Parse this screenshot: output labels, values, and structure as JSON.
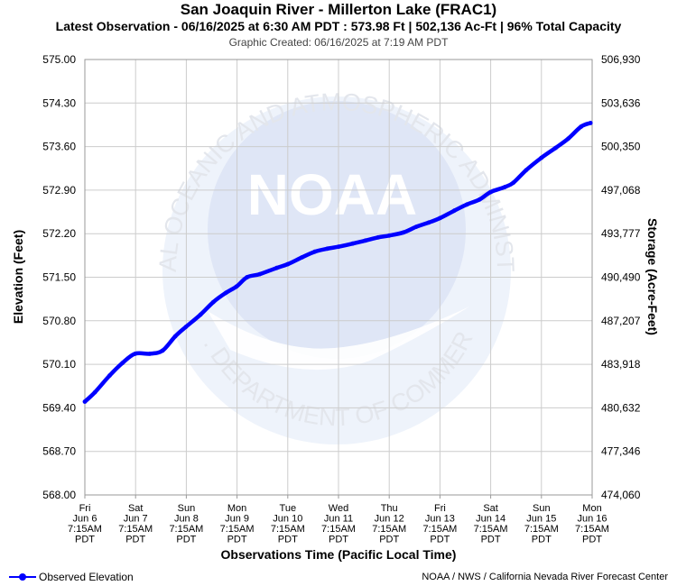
{
  "header": {
    "title": "San Joaquin River - Millerton Lake (FRAC1)",
    "subtitle": "Latest Observation - 06/16/2025 at 6:30 AM PDT : 573.98 Ft | 502,136 Ac-Ft | 96% Total Capacity",
    "created": "Graphic Created: 06/16/2025 at 7:19 AM PDT"
  },
  "watermark": {
    "logo_text": "NOAA",
    "ring_top": "NATIONAL OCEANIC AND ATMOSPHERIC ADMINISTRATION",
    "ring_bottom": "U.S. DEPARTMENT OF COMMERCE"
  },
  "legend": {
    "label": "Observed Elevation",
    "icon": "line-with-dot-icon"
  },
  "credit": "NOAA / NWS / California Nevada River Forecast Center",
  "colors": {
    "series": "#0000ff",
    "grid": "#cccccc",
    "watermark": "#e8eef8"
  },
  "chart_data": {
    "type": "line",
    "title": "San Joaquin River - Millerton Lake (FRAC1)",
    "xlabel": "Observations Time (Pacific Local Time)",
    "ylabel": "Elevation (Feet)",
    "y2label": "Storage (Acre-Feet)",
    "ylim": [
      568.0,
      575.0
    ],
    "yticks": [
      "568.00",
      "568.70",
      "569.40",
      "570.10",
      "570.80",
      "571.50",
      "572.20",
      "572.90",
      "573.60",
      "574.30",
      "575.00"
    ],
    "y2ticks": [
      "474,060",
      "477,346",
      "480,632",
      "483,918",
      "487,207",
      "490,490",
      "493,777",
      "497,068",
      "500,350",
      "503,636",
      "506,930"
    ],
    "xlim": [
      "2025-06-06 07:15",
      "2025-06-16 07:15"
    ],
    "xticks": [
      [
        "Fri",
        "Jun 6",
        "7:15AM",
        "PDT"
      ],
      [
        "Sat",
        "Jun 7",
        "7:15AM",
        "PDT"
      ],
      [
        "Sun",
        "Jun 8",
        "7:15AM",
        "PDT"
      ],
      [
        "Mon",
        "Jun 9",
        "7:15AM",
        "PDT"
      ],
      [
        "Tue",
        "Jun 10",
        "7:15AM",
        "PDT"
      ],
      [
        "Wed",
        "Jun 11",
        "7:15AM",
        "PDT"
      ],
      [
        "Thu",
        "Jun 12",
        "7:15AM",
        "PDT"
      ],
      [
        "Fri",
        "Jun 13",
        "7:15AM",
        "PDT"
      ],
      [
        "Sat",
        "Jun 14",
        "7:15AM",
        "PDT"
      ],
      [
        "Sun",
        "Jun 15",
        "7:15AM",
        "PDT"
      ],
      [
        "Mon",
        "Jun 16",
        "7:15AM",
        "PDT"
      ]
    ],
    "grid": true,
    "legend_position": "bottom-left",
    "series": [
      {
        "name": "Observed Elevation",
        "x": [
          "2025-06-06 07:15",
          "2025-06-06 12:00",
          "2025-06-06 19:00",
          "2025-06-07 01:00",
          "2025-06-07 07:00",
          "2025-06-07 14:00",
          "2025-06-07 20:00",
          "2025-06-08 02:00",
          "2025-06-08 07:00",
          "2025-06-08 14:00",
          "2025-06-08 20:00",
          "2025-06-09 02:00",
          "2025-06-09 07:00",
          "2025-06-09 12:00",
          "2025-06-09 18:00",
          "2025-06-10 02:00",
          "2025-06-10 07:15",
          "2025-06-10 14:00",
          "2025-06-10 20:00",
          "2025-06-11 02:00",
          "2025-06-11 07:15",
          "2025-06-11 14:00",
          "2025-06-11 20:00",
          "2025-06-12 02:00",
          "2025-06-12 07:15",
          "2025-06-12 14:00",
          "2025-06-12 20:00",
          "2025-06-13 02:00",
          "2025-06-13 07:15",
          "2025-06-13 14:00",
          "2025-06-13 20:00",
          "2025-06-14 02:00",
          "2025-06-14 07:15",
          "2025-06-14 14:00",
          "2025-06-14 18:00",
          "2025-06-15 00:00",
          "2025-06-15 07:15",
          "2025-06-15 14:00",
          "2025-06-15 20:00",
          "2025-06-16 02:00",
          "2025-06-16 06:30"
        ],
        "y": [
          569.5,
          569.65,
          569.92,
          570.12,
          570.27,
          570.27,
          570.32,
          570.55,
          570.7,
          570.9,
          571.1,
          571.25,
          571.35,
          571.5,
          571.55,
          571.65,
          571.71,
          571.82,
          571.91,
          571.96,
          571.99,
          572.04,
          572.09,
          572.14,
          572.17,
          572.22,
          572.31,
          572.38,
          572.45,
          572.57,
          572.67,
          572.75,
          572.87,
          572.95,
          573.02,
          573.22,
          573.42,
          573.58,
          573.73,
          573.92,
          573.98
        ]
      }
    ]
  }
}
